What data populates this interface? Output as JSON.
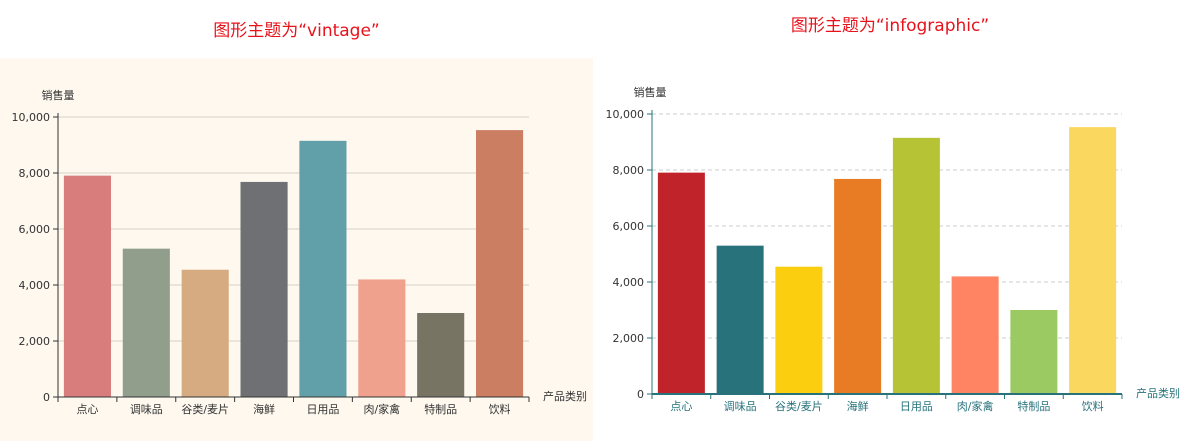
{
  "titles": {
    "vintage": "图形主题为“vintage”",
    "infographic": "图形主题为“infographic”"
  },
  "chart_data": [
    {
      "type": "bar",
      "theme": "vintage",
      "categories": [
        "点心",
        "调味品",
        "谷类/麦片",
        "海鲜",
        "日用品",
        "肉/家禽",
        "特制品",
        "饮料"
      ],
      "values": [
        7906,
        5298,
        4546,
        7681,
        9149,
        4199,
        3000,
        9532
      ],
      "ylabel": "销售量",
      "xlabel": "产品类别",
      "ylim": [
        0,
        10000
      ],
      "yticks": [
        "0",
        "2,000",
        "4,000",
        "6,000",
        "8,000",
        "10,000"
      ],
      "grid": true,
      "background": "#fef8ef",
      "colors": [
        "#d87c7c",
        "#919e8b",
        "#d7ab82",
        "#6e7074",
        "#61a0a8",
        "#efa18d",
        "#787464",
        "#cc7e63"
      ]
    },
    {
      "type": "bar",
      "theme": "infographic",
      "categories": [
        "点心",
        "调味品",
        "谷类/麦片",
        "海鲜",
        "日用品",
        "肉/家禽",
        "特制品",
        "饮料"
      ],
      "values": [
        7906,
        5298,
        4546,
        7681,
        9149,
        4199,
        3000,
        9532
      ],
      "ylabel": "销售量",
      "xlabel": "产品类别",
      "ylim": [
        0,
        10000
      ],
      "yticks": [
        "0",
        "2,000",
        "4,000",
        "6,000",
        "8,000",
        "10,000"
      ],
      "grid": true,
      "background": "#ffffff",
      "colors": [
        "#c1232b",
        "#27727b",
        "#fcce10",
        "#e87c25",
        "#b5c334",
        "#fe8463",
        "#9bca63",
        "#fad860"
      ]
    }
  ]
}
